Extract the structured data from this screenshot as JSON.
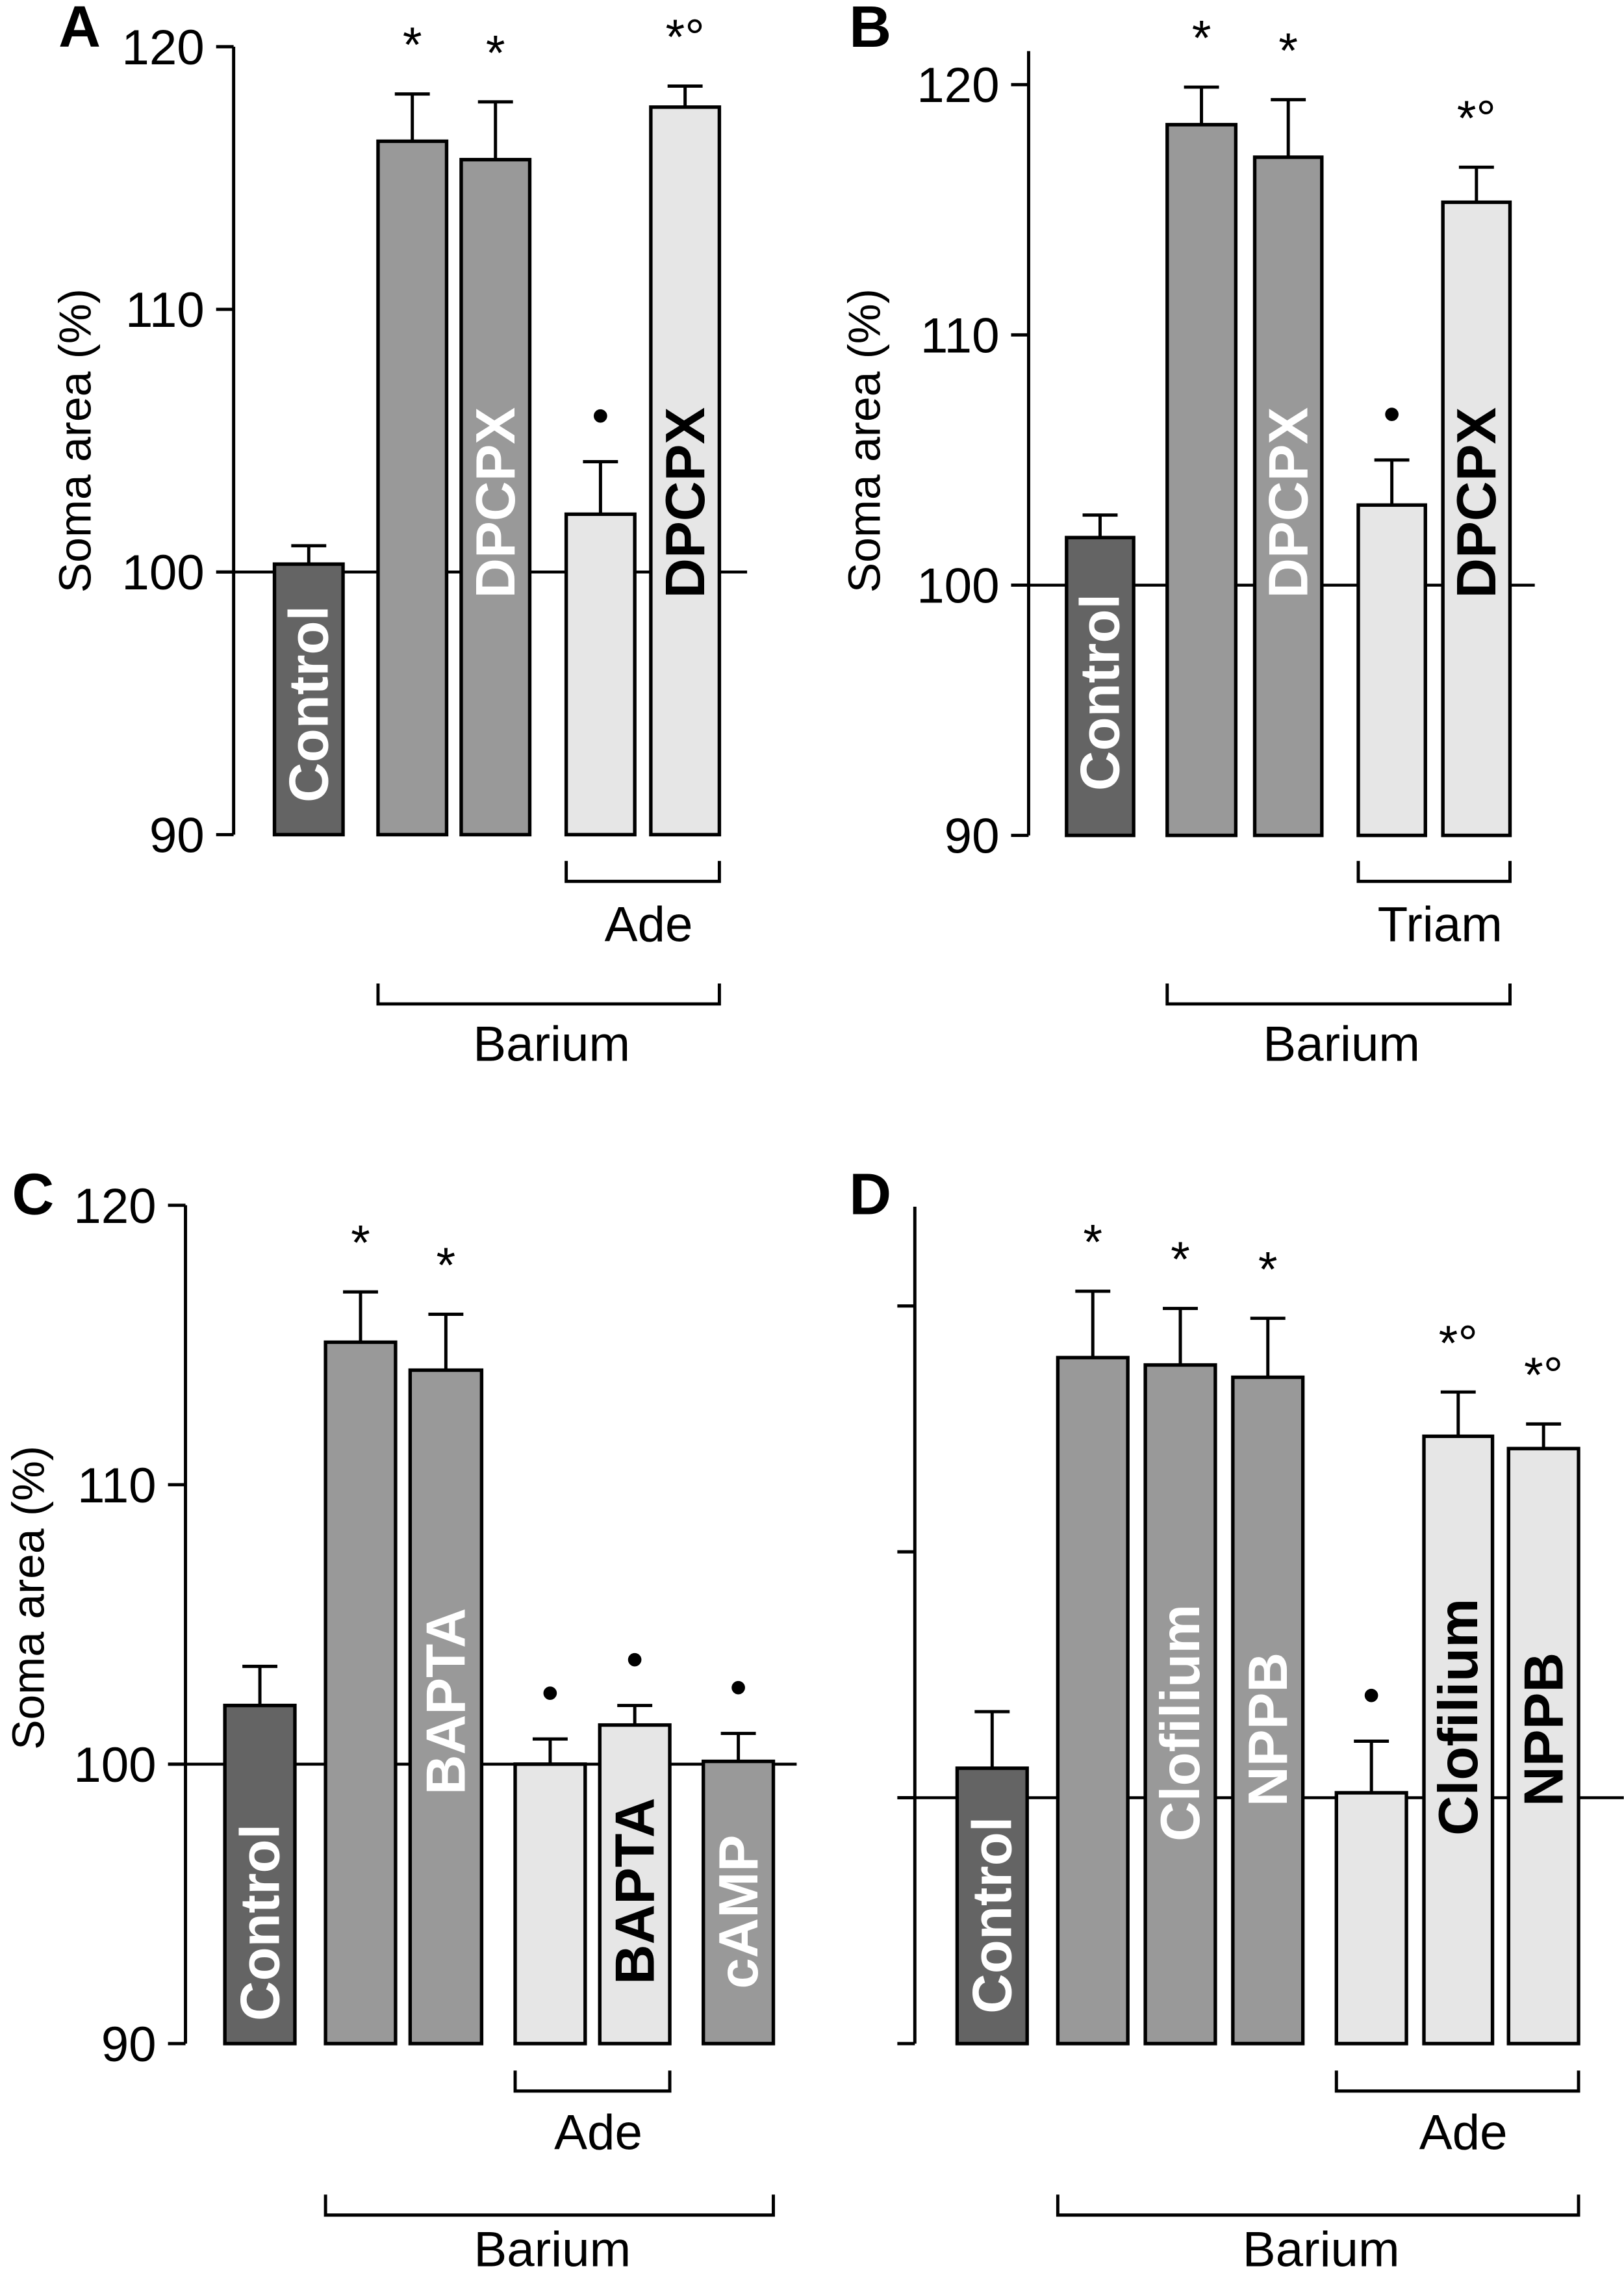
{
  "chart_data": [
    {
      "type": "bar",
      "panel": "A",
      "ylabel": "Soma area (%)",
      "ylim": [
        90,
        120
      ],
      "yticks": [
        90,
        100,
        110,
        120
      ],
      "ytick_labels": [
        "90",
        "100",
        "110",
        "120"
      ],
      "reference_line": 100,
      "categories": [
        "Control",
        "",
        "DPCPX",
        "",
        "DPCPX"
      ],
      "values": [
        100.3,
        116.4,
        115.7,
        102.2,
        117.7
      ],
      "errors": [
        0.7,
        1.8,
        2.2,
        2.0,
        0.8
      ],
      "markers": [
        "",
        "*",
        "*",
        "•",
        "*°"
      ],
      "bar_colors": [
        "#646464",
        "#999999",
        "#999999",
        "#e6e6e6",
        "#e6e6e6"
      ],
      "groups": [
        {
          "label": "Ade",
          "bars": [
            3,
            4
          ]
        },
        {
          "label": "Barium",
          "bars": [
            1,
            4
          ]
        }
      ]
    },
    {
      "type": "bar",
      "panel": "B",
      "ylabel": "Soma area (%)",
      "ylim": [
        90,
        120
      ],
      "yticks": [
        90,
        100,
        110,
        120
      ],
      "ytick_labels": [
        "90",
        "100",
        "110",
        "120"
      ],
      "reference_line": 100,
      "categories": [
        "Control",
        "",
        "DPCPX",
        "",
        "DPCPX"
      ],
      "values": [
        101.9,
        118.4,
        117.1,
        103.2,
        115.3
      ],
      "errors": [
        0.9,
        1.5,
        2.3,
        1.8,
        1.4
      ],
      "markers": [
        "",
        "*",
        "*",
        "•",
        "*°"
      ],
      "bar_colors": [
        "#646464",
        "#999999",
        "#999999",
        "#e6e6e6",
        "#e6e6e6"
      ],
      "groups": [
        {
          "label": "Triam",
          "bars": [
            3,
            4
          ]
        },
        {
          "label": "Barium",
          "bars": [
            1,
            4
          ]
        }
      ]
    },
    {
      "type": "bar",
      "panel": "C",
      "ylabel": "Soma area (%)",
      "ylim": [
        90,
        120
      ],
      "yticks": [
        90,
        100,
        110,
        120
      ],
      "ytick_labels": [
        "90",
        "100",
        "110",
        "120"
      ],
      "reference_line": 100,
      "categories": [
        "Control",
        "",
        "BAPTA",
        "",
        "BAPTA",
        "cAMP"
      ],
      "values": [
        102.1,
        115.1,
        114.1,
        100.0,
        101.4,
        100.1
      ],
      "errors": [
        1.4,
        1.8,
        2.0,
        0.9,
        0.7,
        1.0
      ],
      "markers": [
        "",
        "*",
        "*",
        "•",
        "•",
        "•"
      ],
      "bar_colors": [
        "#646464",
        "#999999",
        "#999999",
        "#e6e6e6",
        "#e6e6e6",
        "#999999"
      ],
      "groups": [
        {
          "label": "Ade",
          "bars": [
            3,
            4
          ]
        },
        {
          "label": "Barium",
          "bars": [
            1,
            5
          ]
        }
      ]
    },
    {
      "type": "bar",
      "panel": "D",
      "ylabel": "",
      "ylim": [
        90,
        124
      ],
      "yticks": [
        90,
        100,
        110,
        120
      ],
      "ytick_labels": [],
      "reference_line": 100,
      "categories": [
        "Control",
        "",
        "Clofilium",
        "NPPB",
        "",
        "Clofilium",
        "NPPB"
      ],
      "values": [
        101.2,
        117.9,
        117.6,
        117.1,
        100.2,
        114.7,
        114.2
      ],
      "errors": [
        2.3,
        2.7,
        2.3,
        2.4,
        2.1,
        1.8,
        1.0
      ],
      "markers": [
        "",
        "*",
        "*",
        "*",
        "•",
        "*°",
        "*°"
      ],
      "bar_colors": [
        "#646464",
        "#999999",
        "#999999",
        "#999999",
        "#e6e6e6",
        "#e6e6e6",
        "#e6e6e6"
      ],
      "groups": [
        {
          "label": "Ade",
          "bars": [
            4,
            6
          ]
        },
        {
          "label": "Barium",
          "bars": [
            1,
            6
          ]
        }
      ]
    }
  ]
}
